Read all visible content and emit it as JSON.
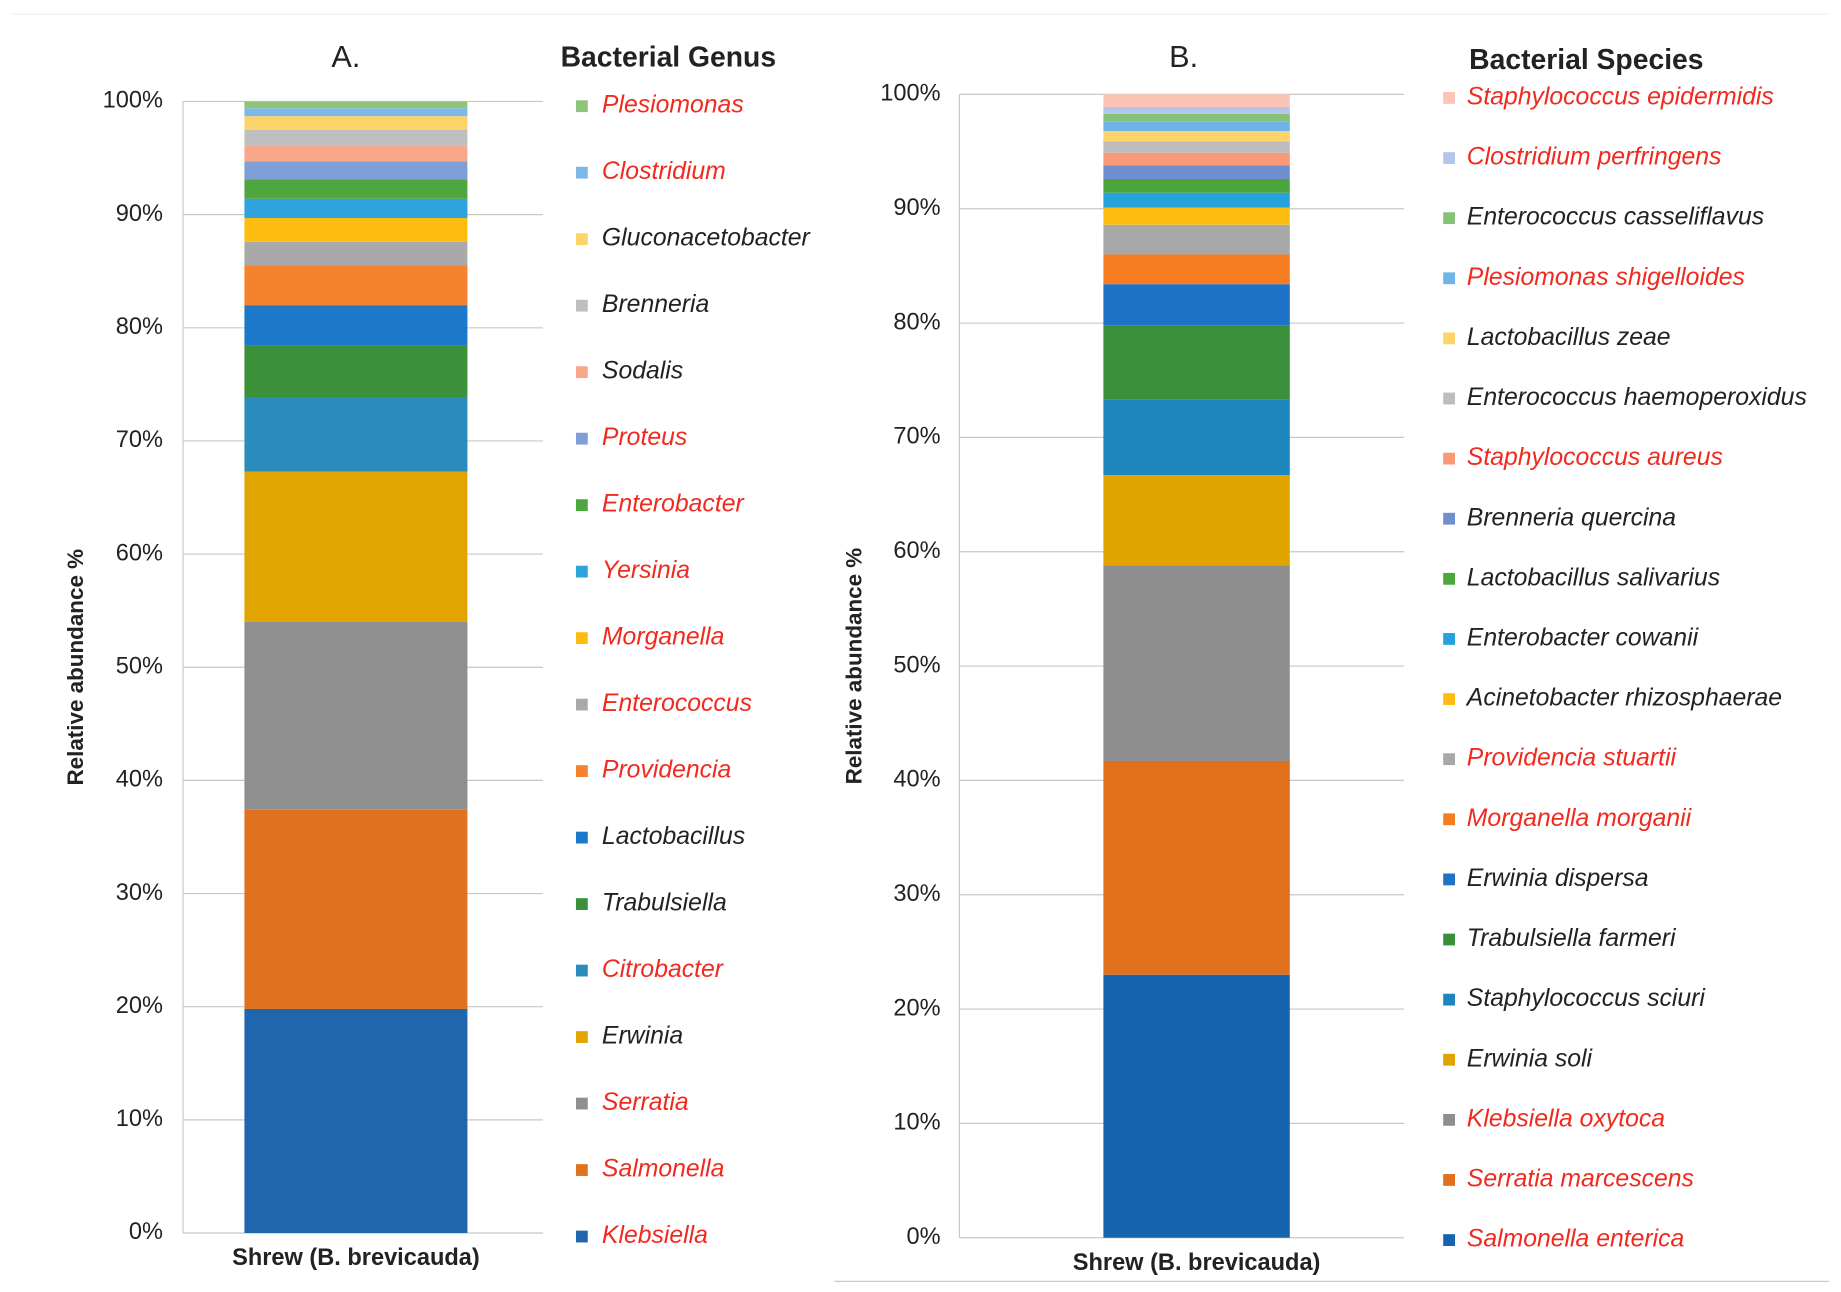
{
  "chart_data": [
    {
      "type": "stacked_bar",
      "title": "A.",
      "legend_title": "Bacterial Genus",
      "y_label": "Relative abundance %",
      "categories": [
        "Shrew (B. brevicauda)"
      ],
      "ylim": [
        0,
        100
      ],
      "yticks": [
        {
          "value": 0,
          "label": "0%"
        },
        {
          "value": 10,
          "label": "10%"
        },
        {
          "value": 20,
          "label": "20%"
        },
        {
          "value": 30,
          "label": "30%"
        },
        {
          "value": 40,
          "label": "40%"
        },
        {
          "value": 50,
          "label": "50%"
        },
        {
          "value": 60,
          "label": "60%"
        },
        {
          "value": 70,
          "label": "70%"
        },
        {
          "value": 80,
          "label": "80%"
        },
        {
          "value": 90,
          "label": "90%"
        },
        {
          "value": 100,
          "label": "100%"
        }
      ],
      "grid": true,
      "series": [
        {
          "name": "Klebsiella",
          "color": "#1f66ad",
          "label_color": "#f02a1e",
          "values": [
            19.8
          ]
        },
        {
          "name": "Salmonella",
          "color": "#e0721f",
          "label_color": "#f02a1e",
          "values": [
            17.6
          ]
        },
        {
          "name": "Serratia",
          "color": "#8f8f8f",
          "label_color": "#f02a1e",
          "values": [
            16.6
          ]
        },
        {
          "name": "Erwinia",
          "color": "#e2a400",
          "label_color": "#222222",
          "values": [
            13.3
          ]
        },
        {
          "name": "Citrobacter",
          "color": "#2a8bbd",
          "label_color": "#f02a1e",
          "values": [
            6.5
          ]
        },
        {
          "name": "Trabulsiella",
          "color": "#3a913a",
          "label_color": "#222222",
          "values": [
            4.6
          ]
        },
        {
          "name": "Lactobacillus",
          "color": "#1c78c8",
          "label_color": "#222222",
          "values": [
            3.6
          ]
        },
        {
          "name": "Providencia",
          "color": "#f5822e",
          "label_color": "#f02a1e",
          "values": [
            3.5
          ]
        },
        {
          "name": "Enterococcus",
          "color": "#a9a9a9",
          "label_color": "#f02a1e",
          "values": [
            2.1
          ]
        },
        {
          "name": "Morganella",
          "color": "#fdbd10",
          "label_color": "#f02a1e",
          "values": [
            2.1
          ]
        },
        {
          "name": "Yersinia",
          "color": "#2ea3dd",
          "label_color": "#f02a1e",
          "values": [
            1.7
          ]
        },
        {
          "name": "Enterobacter",
          "color": "#4ea63e",
          "label_color": "#f02a1e",
          "values": [
            1.7
          ]
        },
        {
          "name": "Proteus",
          "color": "#7f9fd6",
          "label_color": "#f02a1e",
          "values": [
            1.6
          ]
        },
        {
          "name": "Sodalis",
          "color": "#f7a78a",
          "label_color": "#222222",
          "values": [
            1.4
          ]
        },
        {
          "name": "Brenneria",
          "color": "#bfbfbf",
          "label_color": "#222222",
          "values": [
            1.4
          ]
        },
        {
          "name": "Gluconacetobacter",
          "color": "#fdd46a",
          "label_color": "#222222",
          "values": [
            1.2
          ]
        },
        {
          "name": "Clostridium",
          "color": "#7db8e8",
          "label_color": "#f02a1e",
          "values": [
            0.7
          ]
        },
        {
          "name": "Plesiomonas",
          "color": "#8dc47a",
          "label_color": "#f02a1e",
          "values": [
            0.6
          ]
        }
      ]
    },
    {
      "type": "stacked_bar",
      "title": "B.",
      "legend_title": "Bacterial Species",
      "y_label": "Relative abundance %",
      "categories": [
        "Shrew (B. brevicauda)"
      ],
      "ylim": [
        0,
        100
      ],
      "yticks": [
        {
          "value": 0,
          "label": "0%"
        },
        {
          "value": 10,
          "label": "10%"
        },
        {
          "value": 20,
          "label": "20%"
        },
        {
          "value": 30,
          "label": "30%"
        },
        {
          "value": 40,
          "label": "40%"
        },
        {
          "value": 50,
          "label": "50%"
        },
        {
          "value": 60,
          "label": "60%"
        },
        {
          "value": 70,
          "label": "70%"
        },
        {
          "value": 80,
          "label": "80%"
        },
        {
          "value": 90,
          "label": "90%"
        },
        {
          "value": 100,
          "label": "100%"
        }
      ],
      "grid": true,
      "series": [
        {
          "name": "Salmonella enterica",
          "color": "#1664ae",
          "label_color": "#f02a1e",
          "values": [
            23.0
          ]
        },
        {
          "name": "Serratia marcescens",
          "color": "#e0701c",
          "label_color": "#f02a1e",
          "values": [
            18.7
          ]
        },
        {
          "name": "Klebsiella oxytoca",
          "color": "#8e8e8e",
          "label_color": "#f02a1e",
          "values": [
            17.1
          ]
        },
        {
          "name": "Erwinia soli",
          "color": "#e0a400",
          "label_color": "#222222",
          "values": [
            7.9
          ]
        },
        {
          "name": "Staphylococcus sciuri",
          "color": "#1d86bd",
          "label_color": "#222222",
          "values": [
            6.6
          ]
        },
        {
          "name": "Trabulsiella farmeri",
          "color": "#3a903a",
          "label_color": "#222222",
          "values": [
            6.5
          ]
        },
        {
          "name": "Erwinia dispersa",
          "color": "#1f73c6",
          "label_color": "#222222",
          "values": [
            3.6
          ]
        },
        {
          "name": "Morganella morganii",
          "color": "#f57c20",
          "label_color": "#f02a1e",
          "values": [
            2.6
          ]
        },
        {
          "name": "Providencia stuartii",
          "color": "#a8a8a8",
          "label_color": "#f02a1e",
          "values": [
            2.6
          ]
        },
        {
          "name": "Acinetobacter rhizosphaerae",
          "color": "#fdbd10",
          "label_color": "#222222",
          "values": [
            1.5
          ]
        },
        {
          "name": "Enterobacter cowanii",
          "color": "#25a1dc",
          "label_color": "#222222",
          "values": [
            1.3
          ]
        },
        {
          "name": "Lactobacillus salivarius",
          "color": "#4ca63c",
          "label_color": "#222222",
          "values": [
            1.2
          ]
        },
        {
          "name": "Brenneria quercina",
          "color": "#6f8fcf",
          "label_color": "#222222",
          "values": [
            1.2
          ]
        },
        {
          "name": "Staphylococcus aureus",
          "color": "#f89a78",
          "label_color": "#f02a1e",
          "values": [
            1.1
          ]
        },
        {
          "name": "Enterococcus haemoperoxidus",
          "color": "#bdbdbd",
          "label_color": "#222222",
          "values": [
            1.0
          ]
        },
        {
          "name": "Lactobacillus zeae",
          "color": "#fdd46a",
          "label_color": "#222222",
          "values": [
            0.9
          ]
        },
        {
          "name": "Plesiomonas shigelloides",
          "color": "#6fb4e8",
          "label_color": "#f02a1e",
          "values": [
            0.8
          ]
        },
        {
          "name": "Enterococcus casseliflavus",
          "color": "#86c275",
          "label_color": "#222222",
          "values": [
            0.7
          ]
        },
        {
          "name": "Clostridium perfringens",
          "color": "#b3c6ea",
          "label_color": "#f02a1e",
          "values": [
            0.6
          ]
        },
        {
          "name": "Staphylococcus epidermidis",
          "color": "#fbc5b6",
          "label_color": "#f02a1e",
          "values": [
            1.1
          ]
        }
      ]
    }
  ]
}
